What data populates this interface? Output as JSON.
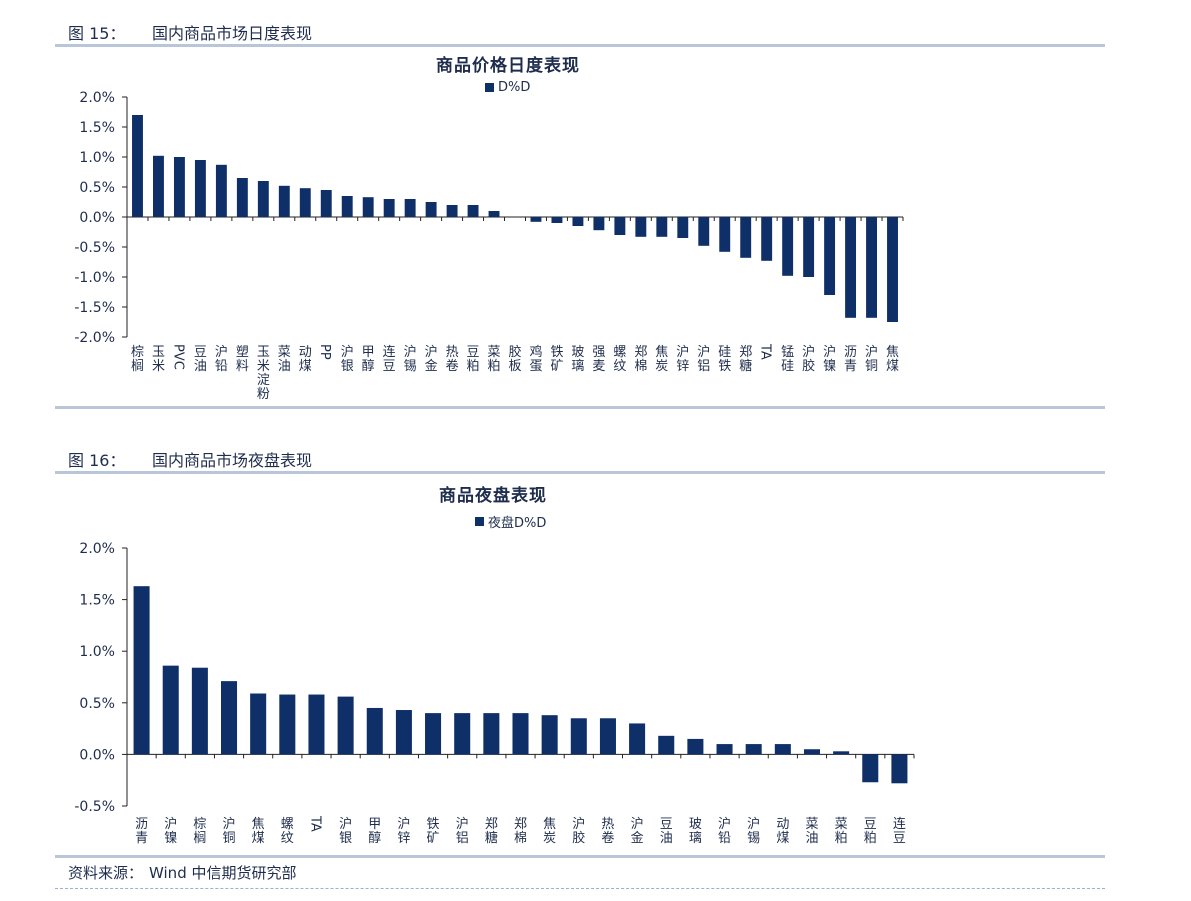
{
  "figures": [
    {
      "label": "图 15：",
      "title": "国内商品市场日度表现"
    },
    {
      "label": "图 16：",
      "title": "国内商品市场夜盘表现"
    }
  ],
  "source": {
    "label": "资料来源：",
    "value": "Wind  中信期货研究部"
  },
  "colors": {
    "bar": "#0e2f68",
    "rule": "#b9c6d8",
    "text": "#1f2d4d"
  },
  "chart_data": [
    {
      "type": "bar",
      "title": "商品价格日度表现",
      "series": [
        {
          "name": "D%D"
        }
      ],
      "ylim": [
        -2.0,
        2.0
      ],
      "yticks": [
        "2.0%",
        "1.5%",
        "1.0%",
        "0.5%",
        "0.0%",
        "-0.5%",
        "-1.0%",
        "-1.5%",
        "-2.0%"
      ],
      "categories": [
        "棕榈",
        "玉米",
        "PVC",
        "豆油",
        "沪铅",
        "塑料",
        "玉米淀粉",
        "菜油",
        "动煤",
        "PP",
        "沪银",
        "甲醇",
        "连豆",
        "沪锡",
        "沪金",
        "热卷",
        "豆粕",
        "菜粕",
        "胶板",
        "鸡蛋",
        "铁矿",
        "玻璃",
        "强麦",
        "螺纹",
        "郑棉",
        "焦炭",
        "沪锌",
        "沪铝",
        "硅铁",
        "郑糖",
        "TA",
        "锰硅",
        "沪胶",
        "沪镍",
        "沥青",
        "沪铜",
        "焦煤"
      ],
      "values": [
        1.7,
        1.02,
        1.0,
        0.95,
        0.87,
        0.65,
        0.6,
        0.52,
        0.48,
        0.45,
        0.35,
        0.33,
        0.3,
        0.3,
        0.25,
        0.2,
        0.2,
        0.1,
        0.0,
        -0.08,
        -0.1,
        -0.15,
        -0.22,
        -0.3,
        -0.33,
        -0.33,
        -0.35,
        -0.48,
        -0.58,
        -0.68,
        -0.73,
        -0.98,
        -1.0,
        -1.3,
        -1.68,
        -1.68,
        -1.75
      ]
    },
    {
      "type": "bar",
      "title": "商品夜盘表现",
      "series": [
        {
          "name": "夜盘D%D"
        }
      ],
      "ylim": [
        -0.5,
        2.0
      ],
      "yticks": [
        "2.0%",
        "1.5%",
        "1.0%",
        "0.5%",
        "0.0%",
        "-0.5%"
      ],
      "categories": [
        "沥青",
        "沪镍",
        "棕榈",
        "沪铜",
        "焦煤",
        "螺纹",
        "TA",
        "沪银",
        "甲醇",
        "沪锌",
        "铁矿",
        "沪铝",
        "郑糖",
        "郑棉",
        "焦炭",
        "沪胶",
        "热卷",
        "沪金",
        "豆油",
        "玻璃",
        "沪铅",
        "沪锡",
        "动煤",
        "菜油",
        "菜粕",
        "豆粕",
        "连豆"
      ],
      "values": [
        1.63,
        0.86,
        0.84,
        0.71,
        0.59,
        0.58,
        0.58,
        0.56,
        0.45,
        0.43,
        0.4,
        0.4,
        0.4,
        0.4,
        0.38,
        0.35,
        0.35,
        0.3,
        0.18,
        0.15,
        0.1,
        0.1,
        0.1,
        0.05,
        0.03,
        -0.27,
        -0.28
      ]
    }
  ]
}
